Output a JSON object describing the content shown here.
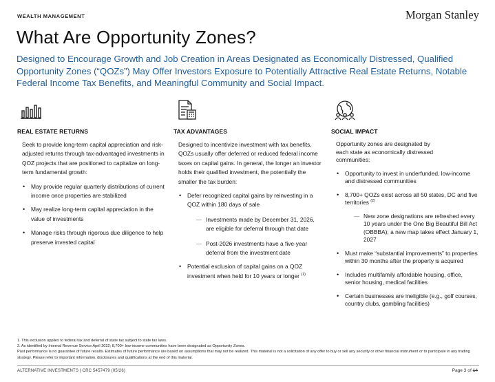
{
  "header": {
    "section_label": "WEALTH MANAGEMENT",
    "logo": "Morgan Stanley"
  },
  "title": "What Are Opportunity Zones?",
  "subtitle": "Designed to Encourage Growth and Job Creation in Areas Designated as Economically Distressed, Qualified Opportunity Zones (“QOZs”) May Offer Investors Exposure to Potentially Attractive Real Estate Returns, Notable Federal Income Tax Benefits, and Meaningful Community and Social Impact.",
  "columns": {
    "real_estate": {
      "icon": "bar-chart-icon",
      "heading": "REAL ESTATE RETURNS",
      "intro": "Seek to provide long-term capital appreciation and risk-adjusted returns through tax-advantaged investments in QOZ projects that are positioned to capitalize on long-term fundamental growth:",
      "bullets": [
        "May provide regular quarterly distributions of current income once properties are stabilized",
        "May realize long-term capital appreciation in the value of investments",
        "Manage risks through rigorous due diligence to help preserve invested capital"
      ]
    },
    "tax": {
      "icon": "tax-document-icon",
      "heading": "TAX ADVANTAGES",
      "intro": "Designed to incentivize investment with tax benefits, QOZs usually offer deferred or reduced federal income taxes on capital gains. In general, the longer an investor holds their qualified investment, the potentially the smaller the tax burden:",
      "bullet1": "Defer recognized capital gains by reinvesting in a QOZ within 180 days of sale",
      "sub1": "Investments made by December 31, 2026, are eligible for deferral through that date",
      "sub2": "Post-2026 investments have a five-year deferral from the investment date",
      "bullet2": "Potential exclusion of capital gains on a QOZ investment when held for 10 years or longer",
      "bullet2_sup": "(1)"
    },
    "social": {
      "icon": "community-globe-icon",
      "heading": "SOCIAL IMPACT",
      "intro": "Opportunity zones are designated by each state as economically distressed communities:",
      "bullet1": "Opportunity to invest in underfunded, low-income and distressed communities",
      "bullet2": "8,700+ QOZs exist across all 50 states, DC and five territories",
      "bullet2_sup": "(2)",
      "sub1": "New zone designations are refreshed every 10 years under the One Big Beautiful Bill Act (OBBBA); a new map takes effect January 1, 2027",
      "bullet3": "Must make “substantial improvements” to properties within 30 months after the property is acquired",
      "bullet4": "Includes multifamily affordable housing, office, senior housing, medical facilities",
      "bullet5": "Certain businesses are ineligible (e.g., golf courses, country clubs, gambling facilities)"
    }
  },
  "footnotes": [
    "1. This exclusion applies to federal tax and deferral of state tax subject to state tax laws.",
    "2. As identified by Internal Revenue Service April 2022; 8,700+ low-income communities have been designated as Opportunity Zones.",
    "Past performance is no guarantee of future results. Estimates of future performance are based on assumptions that may not be realized. This material is not a solicitation of any offer to buy or sell any security or other financial instrument or to participate in any trading strategy. Please refer to important information, disclosures and qualifications at the end of this material."
  ],
  "footer": {
    "left": "ALTERNATIVE INVESTMENTS | CRC 5457479 (05/26)",
    "page_prefix": "Page 3 of",
    "page_total": "14"
  }
}
